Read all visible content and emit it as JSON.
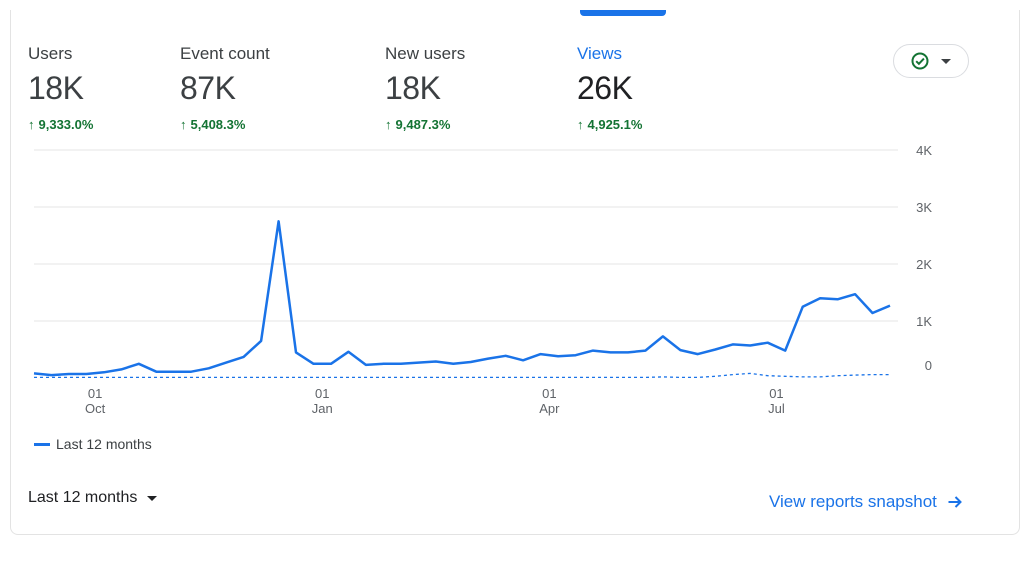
{
  "metrics": [
    {
      "label": "Users",
      "value": "18K",
      "change": "9,333.0%",
      "active": false
    },
    {
      "label": "Event count",
      "value": "87K",
      "change": "5,408.3%",
      "active": false
    },
    {
      "label": "New users",
      "value": "18K",
      "change": "9,487.3%",
      "active": false
    },
    {
      "label": "Views",
      "value": "26K",
      "change": "4,925.1%",
      "active": true
    }
  ],
  "compare_button": {
    "icon": "check-circle-icon",
    "caret": "caret-down-icon"
  },
  "colors": {
    "accent": "#1a73e8",
    "positive": "#137333",
    "grid": "#e6e6e6"
  },
  "chart_data": {
    "type": "line",
    "title": "",
    "ylim": [
      0,
      4000
    ],
    "y_ticks": [
      "0",
      "1K",
      "2K",
      "3K",
      "4K"
    ],
    "y_tick_values": [
      0,
      1000,
      2000,
      3000,
      4000
    ],
    "x_ticks": [
      {
        "index": 3.5,
        "day": "01",
        "month": "Oct"
      },
      {
        "index": 16.5,
        "day": "01",
        "month": "Jan"
      },
      {
        "index": 29.5,
        "day": "01",
        "month": "Apr"
      },
      {
        "index": 42.5,
        "day": "01",
        "month": "Jul"
      }
    ],
    "grid": true,
    "legend": "bottom-left",
    "series": [
      {
        "name": "Last 12 months",
        "style": "solid",
        "values": [
          80,
          50,
          70,
          70,
          100,
          150,
          250,
          110,
          110,
          110,
          170,
          270,
          370,
          650,
          2750,
          450,
          250,
          250,
          460,
          230,
          250,
          250,
          270,
          290,
          250,
          280,
          340,
          390,
          310,
          420,
          380,
          400,
          480,
          450,
          450,
          480,
          730,
          490,
          420,
          500,
          590,
          570,
          620,
          480,
          1250,
          1400,
          1380,
          1470,
          1140,
          1270
        ]
      },
      {
        "style": "dashed",
        "values": [
          10,
          10,
          10,
          10,
          10,
          10,
          10,
          10,
          10,
          10,
          10,
          10,
          10,
          10,
          10,
          10,
          10,
          10,
          10,
          10,
          10,
          10,
          10,
          10,
          10,
          10,
          10,
          10,
          10,
          10,
          10,
          10,
          10,
          10,
          10,
          10,
          20,
          10,
          10,
          30,
          60,
          80,
          40,
          30,
          20,
          20,
          40,
          50,
          60,
          60
        ]
      }
    ]
  },
  "footer": {
    "period_label": "Last 12 months",
    "snapshot_link": "View reports snapshot"
  }
}
